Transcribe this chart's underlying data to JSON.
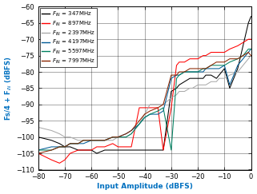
{
  "xlabel": "Input Amplitude (dBFS)",
  "ylabel": "Fs/4 + Fᴵₙ (dBFS)",
  "xlim": [
    -80,
    0
  ],
  "ylim": [
    -110,
    -60
  ],
  "xticks": [
    -80,
    -70,
    -60,
    -50,
    -40,
    -30,
    -20,
    -10,
    0
  ],
  "yticks": [
    -110,
    -105,
    -100,
    -95,
    -90,
    -85,
    -80,
    -75,
    -70,
    -65,
    -60
  ],
  "series": [
    {
      "label": "347MHz",
      "color": "#000000",
      "x": [
        -80,
        -75,
        -72,
        -70,
        -68,
        -65,
        -63,
        -60,
        -58,
        -55,
        -52,
        -50,
        -47,
        -45,
        -42,
        -40,
        -37,
        -35,
        -33,
        -30,
        -28,
        -27,
        -25,
        -23,
        -22,
        -20,
        -18,
        -17,
        -15,
        -13,
        -12,
        -10,
        -8,
        -5,
        -3,
        -1,
        0
      ],
      "y": [
        -100,
        -101,
        -102,
        -103,
        -103,
        -104,
        -104,
        -104,
        -105,
        -104,
        -104,
        -104,
        -104,
        -104,
        -104,
        -104,
        -104,
        -104,
        -104,
        -86,
        -85,
        -84,
        -83,
        -82,
        -82,
        -82,
        -82,
        -81,
        -81,
        -82,
        -81,
        -79,
        -85,
        -79,
        -72,
        -65,
        -63
      ]
    },
    {
      "label": "897MHz",
      "color": "#ff0000",
      "x": [
        -80,
        -75,
        -72,
        -70,
        -68,
        -65,
        -63,
        -60,
        -58,
        -55,
        -52,
        -50,
        -47,
        -45,
        -42,
        -40,
        -38,
        -37,
        -35,
        -33,
        -30,
        -28,
        -27,
        -25,
        -23,
        -22,
        -20,
        -18,
        -17,
        -15,
        -13,
        -12,
        -10,
        -8,
        -5,
        -3,
        -1,
        0
      ],
      "y": [
        -105,
        -107,
        -108,
        -107,
        -105,
        -104,
        -104,
        -104,
        -103,
        -103,
        -102,
        -103,
        -103,
        -103,
        -91,
        -91,
        -91,
        -91,
        -91,
        -104,
        -91,
        -78,
        -77,
        -77,
        -76,
        -76,
        -76,
        -75,
        -75,
        -74,
        -74,
        -74,
        -74,
        -73,
        -72,
        -71,
        -70,
        -70
      ]
    },
    {
      "label": "2397MHz",
      "color": "#aaaaaa",
      "x": [
        -80,
        -75,
        -72,
        -70,
        -68,
        -65,
        -63,
        -60,
        -58,
        -55,
        -52,
        -50,
        -47,
        -45,
        -42,
        -40,
        -38,
        -35,
        -33,
        -30,
        -28,
        -27,
        -25,
        -23,
        -22,
        -20,
        -18,
        -17,
        -15,
        -13,
        -12,
        -10,
        -8,
        -5,
        -3,
        -1,
        0
      ],
      "y": [
        -97,
        -98,
        -99,
        -100,
        -100,
        -101,
        -101,
        -101,
        -101,
        -101,
        -101,
        -100,
        -100,
        -99,
        -96,
        -93,
        -90,
        -90,
        -90,
        -88,
        -87,
        -86,
        -86,
        -85,
        -85,
        -84,
        -84,
        -84,
        -83,
        -83,
        -82,
        -82,
        -81,
        -80,
        -78,
        -76,
        -75
      ]
    },
    {
      "label": "4197MHz",
      "color": "#005b96",
      "x": [
        -80,
        -75,
        -72,
        -70,
        -68,
        -65,
        -63,
        -60,
        -58,
        -55,
        -52,
        -50,
        -47,
        -45,
        -42,
        -40,
        -38,
        -35,
        -33,
        -30,
        -28,
        -27,
        -25,
        -23,
        -22,
        -20,
        -18,
        -17,
        -15,
        -13,
        -12,
        -10,
        -8,
        -5,
        -3,
        -1,
        0
      ],
      "y": [
        -104,
        -103,
        -103,
        -103,
        -102,
        -102,
        -102,
        -101,
        -101,
        -101,
        -100,
        -100,
        -99,
        -98,
        -96,
        -94,
        -93,
        -93,
        -92,
        -82,
        -81,
        -81,
        -80,
        -80,
        -80,
        -80,
        -80,
        -79,
        -79,
        -79,
        -79,
        -78,
        -84,
        -78,
        -76,
        -74,
        -73
      ]
    },
    {
      "label": "5597MHz",
      "color": "#008060",
      "x": [
        -80,
        -75,
        -72,
        -70,
        -68,
        -65,
        -63,
        -60,
        -58,
        -55,
        -52,
        -50,
        -47,
        -45,
        -42,
        -40,
        -38,
        -35,
        -33,
        -30,
        -28,
        -27,
        -25,
        -23,
        -22,
        -20,
        -18,
        -17,
        -15,
        -13,
        -12,
        -10,
        -8,
        -5,
        -3,
        -1,
        0
      ],
      "y": [
        -104,
        -104,
        -103,
        -103,
        -102,
        -102,
        -101,
        -101,
        -101,
        -101,
        -100,
        -100,
        -100,
        -99,
        -96,
        -94,
        -93,
        -92,
        -91,
        -104,
        -82,
        -81,
        -80,
        -80,
        -80,
        -80,
        -79,
        -79,
        -78,
        -78,
        -78,
        -78,
        -77,
        -76,
        -75,
        -73,
        -73
      ]
    },
    {
      "label": "7997MHz",
      "color": "#8b2500",
      "x": [
        -80,
        -75,
        -72,
        -70,
        -68,
        -65,
        -63,
        -60,
        -58,
        -55,
        -52,
        -50,
        -47,
        -45,
        -42,
        -40,
        -38,
        -35,
        -33,
        -30,
        -28,
        -27,
        -25,
        -23,
        -22,
        -20,
        -18,
        -17,
        -15,
        -13,
        -12,
        -10,
        -8,
        -5,
        -3,
        -1,
        0
      ],
      "y": [
        -105,
        -104,
        -103,
        -103,
        -102,
        -102,
        -101,
        -101,
        -101,
        -101,
        -100,
        -100,
        -99,
        -98,
        -95,
        -93,
        -92,
        -91,
        -90,
        -81,
        -81,
        -80,
        -80,
        -79,
        -79,
        -79,
        -79,
        -79,
        -78,
        -77,
        -77,
        -77,
        -76,
        -76,
        -75,
        -74,
        -75
      ]
    }
  ],
  "legend_labels": [
    "F_IN = 347MHz",
    "F_IN = 897MHz",
    "F_IN = 2397MHz",
    "F_IN = 4197MHz",
    "F_IN = 5597MHz",
    "F_IN = 7997MHz"
  ],
  "legend_colors": [
    "#000000",
    "#ff0000",
    "#aaaaaa",
    "#005b96",
    "#008060",
    "#8b2500"
  ],
  "background_color": "#ffffff",
  "xlabel_color": "#0070c0",
  "ylabel_color": "#0070c0"
}
